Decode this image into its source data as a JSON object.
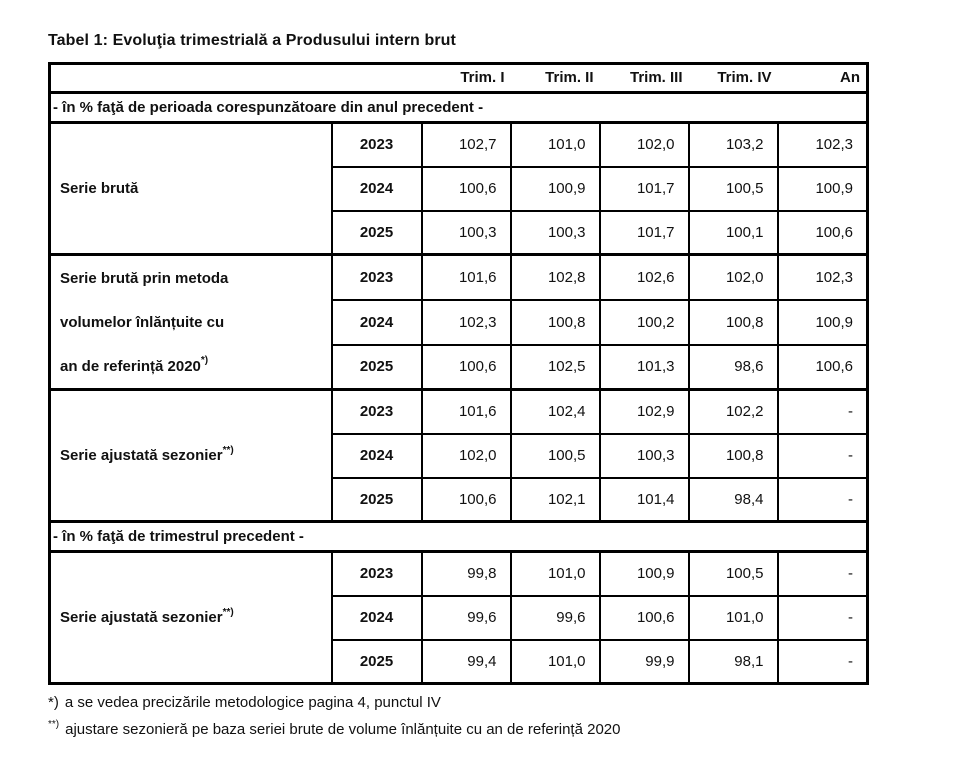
{
  "title": "Tabel 1: Evoluţia trimestrială a Produsului intern brut",
  "table": {
    "columns": [
      "Trim. I",
      "Trim. II",
      "Trim. III",
      "Trim. IV",
      "An"
    ],
    "sections": [
      {
        "header": "- în % faţă de perioada corespunzătoare din anul precedent -",
        "groups": [
          {
            "label_lines": [
              "Serie brută"
            ],
            "label_sup": "",
            "rows": [
              {
                "year": "2023",
                "values": [
                  "102,7",
                  "101,0",
                  "102,0",
                  "103,2",
                  "102,3"
                ]
              },
              {
                "year": "2024",
                "values": [
                  "100,6",
                  "100,9",
                  "101,7",
                  "100,5",
                  "100,9"
                ]
              },
              {
                "year": "2025",
                "values": [
                  "100,3",
                  "100,3",
                  "101,7",
                  "100,1",
                  "100,6"
                ]
              }
            ]
          },
          {
            "label_lines": [
              "Serie brută prin metoda",
              "volumelor înlănțuite cu",
              "an de referință 2020"
            ],
            "label_sup": "*)",
            "rows": [
              {
                "year": "2023",
                "values": [
                  "101,6",
                  "102,8",
                  "102,6",
                  "102,0",
                  "102,3"
                ]
              },
              {
                "year": "2024",
                "values": [
                  "102,3",
                  "100,8",
                  "100,2",
                  "100,8",
                  "100,9"
                ]
              },
              {
                "year": "2025",
                "values": [
                  "100,6",
                  "102,5",
                  "101,3",
                  "98,6",
                  "100,6"
                ]
              }
            ]
          },
          {
            "label_lines": [
              "Serie ajustată sezonier"
            ],
            "label_sup": "**)",
            "rows": [
              {
                "year": "2023",
                "values": [
                  "101,6",
                  "102,4",
                  "102,9",
                  "102,2",
                  "-"
                ]
              },
              {
                "year": "2024",
                "values": [
                  "102,0",
                  "100,5",
                  "100,3",
                  "100,8",
                  "-"
                ]
              },
              {
                "year": "2025",
                "values": [
                  "100,6",
                  "102,1",
                  "101,4",
                  "98,4",
                  "-"
                ]
              }
            ]
          }
        ]
      },
      {
        "header": "- în % faţă de trimestrul precedent -",
        "groups": [
          {
            "label_lines": [
              "Serie ajustată sezonier"
            ],
            "label_sup": "**)",
            "rows": [
              {
                "year": "2023",
                "values": [
                  "99,8",
                  "101,0",
                  "100,9",
                  "100,5",
                  "-"
                ]
              },
              {
                "year": "2024",
                "values": [
                  "99,6",
                  "99,6",
                  "100,6",
                  "101,0",
                  "-"
                ]
              },
              {
                "year": "2025",
                "values": [
                  "99,4",
                  "101,0",
                  "99,9",
                  "98,1",
                  "-"
                ]
              }
            ]
          }
        ]
      }
    ]
  },
  "footnotes": [
    {
      "marker": "*)",
      "superscript": false,
      "text": "a se vedea precizările metodologice pagina 4, punctul IV"
    },
    {
      "marker": "**)",
      "superscript": true,
      "text": "ajustare sezonieră pe baza seriei brute de volume înlănțuite cu an de referință 2020"
    }
  ],
  "colors": {
    "text": "#111111",
    "border": "#000000",
    "background": "#ffffff"
  }
}
